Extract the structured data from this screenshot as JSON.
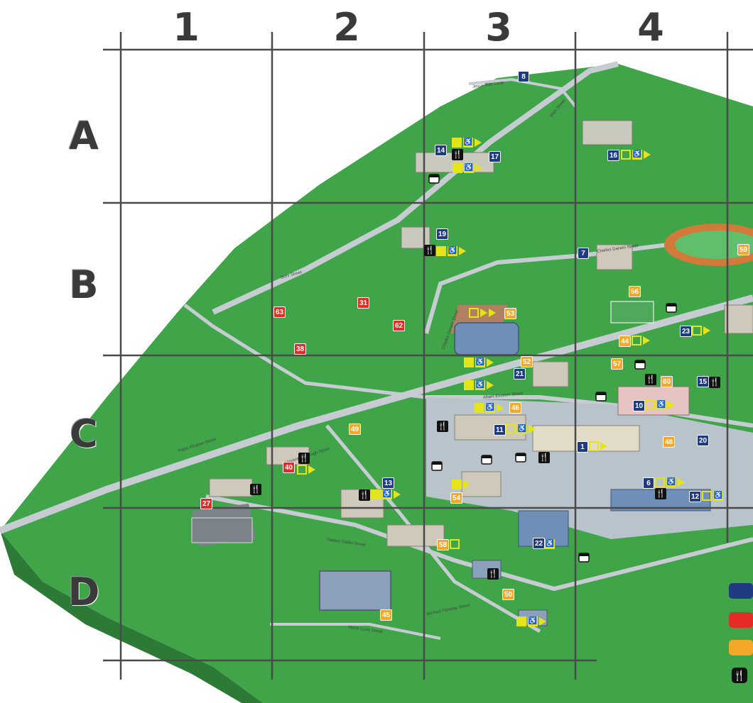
{
  "grid": {
    "columns": [
      "1",
      "2",
      "3",
      "4"
    ],
    "rows": [
      "A",
      "B",
      "C",
      "D"
    ]
  },
  "colors": {
    "grass": "#3fa548",
    "grass_dark": "#2f8a3a",
    "road": "#c7ccd2",
    "building_roof": "#6f8fb8",
    "grid_line": "#4a4a4a",
    "blue_marker": "#1f3b82",
    "red_marker": "#e42b25",
    "orange_marker": "#f5a728",
    "amenity_yellow": "#e4e41a"
  },
  "markers": {
    "blue": [
      "8",
      "14",
      "17",
      "16",
      "19",
      "7",
      "23",
      "21",
      "15",
      "10",
      "11",
      "1",
      "20",
      "13",
      "6",
      "12",
      "22"
    ],
    "red": [
      "63",
      "31",
      "62",
      "38",
      "40",
      "27"
    ],
    "orange": [
      "59",
      "56",
      "53",
      "44",
      "57",
      "52",
      "60",
      "46",
      "49",
      "48",
      "54",
      "58",
      "50",
      "45"
    ]
  },
  "streets": {
    "a": "Jesus Sulz Loop",
    "b": "Main Street",
    "c": "Charles Darwin Street",
    "d": "Bohr Street",
    "e": "Charles Darwin Street",
    "f": "Albert Einstein Street",
    "g": "Pablo Picasso Street",
    "h": "Vincent Van Gogh Street",
    "i": "Galileo Galilei Street",
    "j": "Michael Faraday Street",
    "k": "Marie Curie Street"
  },
  "legend": {
    "icons": [
      "blue-square-icon",
      "red-square-icon",
      "orange-square-icon",
      "restaurant-icon"
    ]
  }
}
